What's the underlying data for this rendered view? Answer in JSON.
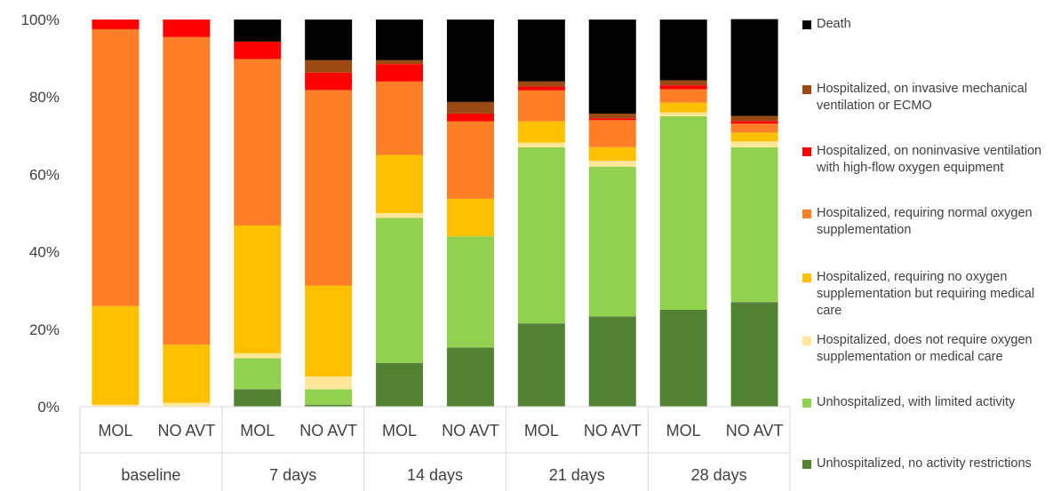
{
  "chart_data": {
    "type": "bar",
    "stacked": true,
    "percent": true,
    "y_ticks": [
      "0%",
      "20%",
      "40%",
      "60%",
      "80%",
      "100%"
    ],
    "ylim": [
      0,
      100
    ],
    "groups": [
      "baseline",
      "7 days",
      "14 days",
      "21 days",
      "28 days"
    ],
    "categories": [
      "MOL",
      "NO AVT",
      "MOL",
      "NO AVT",
      "MOL",
      "NO AVT",
      "MOL",
      "NO AVT",
      "MOL",
      "NO AVT"
    ],
    "legend_position": "right",
    "series": [
      {
        "name": "Unhospitalized, no activity restrictions",
        "color": "#548235",
        "values": [
          0,
          0,
          4.5,
          0.5,
          11.3,
          15.3,
          21.5,
          23.3,
          25,
          27
        ]
      },
      {
        "name": "Unhospitalized, with limited activity",
        "color": "#92d050",
        "values": [
          0,
          0,
          8,
          4,
          37.5,
          28.7,
          45.5,
          38.7,
          50,
          40
        ]
      },
      {
        "name": "Hospitalized, does not require oxygen supplementation or medical care",
        "color": "#ffe699",
        "values": [
          0.5,
          1,
          1.3,
          3.3,
          1.2,
          0,
          1.2,
          1.5,
          1,
          1.5
        ]
      },
      {
        "name": "Hospitalized, requiring no oxygen supplementation but requiring medical care",
        "color": "#ffc000",
        "values": [
          25.5,
          15,
          33,
          23.5,
          15,
          9.7,
          5.5,
          3.5,
          2.5,
          2.3
        ]
      },
      {
        "name": "Hospitalized, requiring normal oxygen supplementation",
        "color": "#ff7f27",
        "values": [
          71.5,
          79.5,
          43,
          50.5,
          19,
          20,
          8,
          7,
          3.5,
          2.3
        ]
      },
      {
        "name": "Hospitalized, on noninvasive ventilation with high-flow oxygen equipment",
        "color": "#ff0000",
        "values": [
          2.5,
          4.5,
          4.5,
          4.5,
          4.5,
          2,
          1,
          0.5,
          1,
          0.7
        ]
      },
      {
        "name": "Hospitalized, on invasive mechanical ventilation or ECMO",
        "color": "#9c4a13",
        "values": [
          0,
          0,
          0,
          3.2,
          1,
          3,
          1.3,
          1.2,
          1.3,
          1.3
        ]
      },
      {
        "name": "Death",
        "color": "#000000",
        "values": [
          0,
          0,
          5.7,
          10.5,
          10.5,
          21.3,
          16,
          24.3,
          15.7,
          25
        ]
      }
    ]
  }
}
